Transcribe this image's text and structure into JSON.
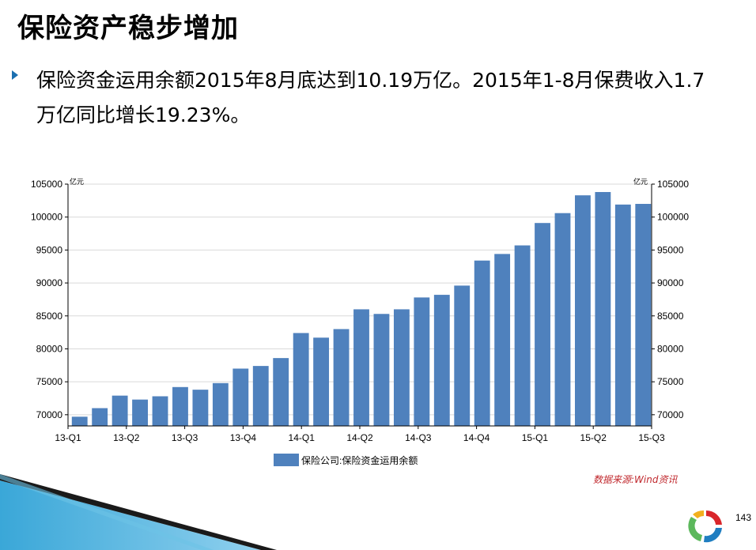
{
  "slide": {
    "title": "保险资产稳步增加",
    "text": "保险资金运用余额2015年8月底达到10.19万亿。2015年1-8月保费收入1.7万亿同比增长19.23%。",
    "source": "数据来源:Wind资讯",
    "page_number": "143"
  },
  "colors": {
    "bar": "#4f81bd",
    "bullet": "#1b6fb0",
    "source_text": "#c0282d"
  },
  "chart_data": {
    "type": "bar",
    "x_tick_labels": [
      "13-Q1",
      "13-Q2",
      "13-Q3",
      "13-Q4",
      "14-Q1",
      "14-Q2",
      "14-Q3",
      "14-Q4",
      "15-Q1",
      "15-Q2",
      "15-Q3"
    ],
    "y_unit_left": "亿元",
    "y_unit_right": "亿元",
    "y_ticks": [
      70000,
      75000,
      80000,
      85000,
      90000,
      95000,
      100000,
      105000
    ],
    "ylim": [
      68300,
      105000
    ],
    "legend": "保险公司:保险资金运用余额",
    "legend_position": "bottom",
    "series": [
      {
        "name": "保险公司:保险资金运用余额",
        "values": [
          69700,
          71000,
          72900,
          72300,
          72800,
          74200,
          73800,
          74800,
          77000,
          77400,
          78600,
          82400,
          81700,
          83000,
          86000,
          85300,
          86000,
          87800,
          88200,
          89600,
          93400,
          94400,
          95700,
          99100,
          100600,
          103300,
          103800,
          101900,
          102000
        ]
      }
    ]
  }
}
